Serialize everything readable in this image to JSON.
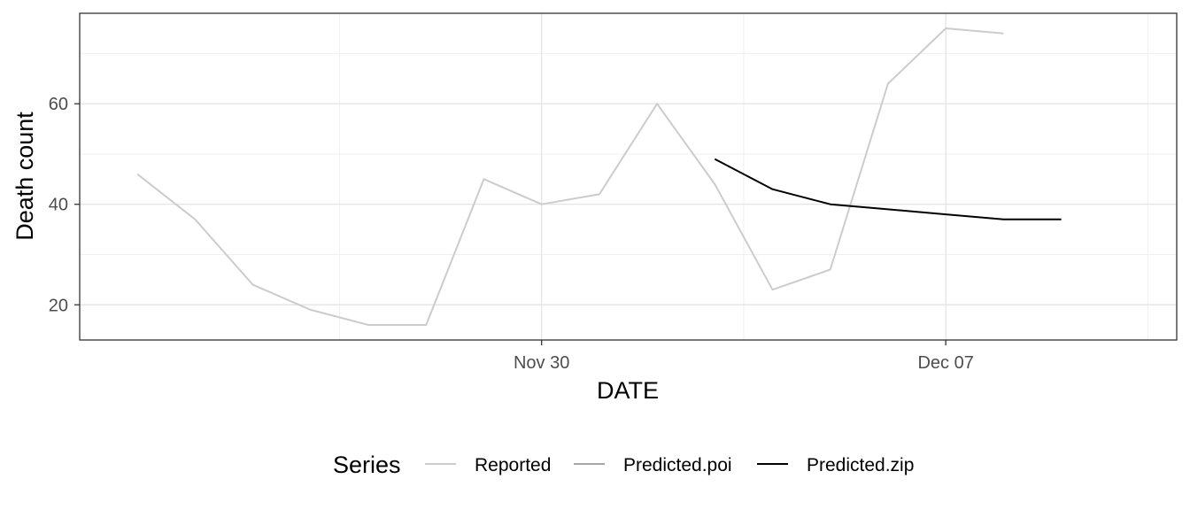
{
  "chart_data": {
    "type": "line",
    "title": "",
    "xlabel": "DATE",
    "ylabel": "Death count",
    "x_ticks": [
      {
        "date": "2020-11-30",
        "label": "Nov 30"
      },
      {
        "date": "2020-12-07",
        "label": "Dec 07"
      }
    ],
    "y_ticks": [
      20,
      40,
      60
    ],
    "xlim": [
      "2020-11-22",
      "2020-12-11"
    ],
    "ylim": [
      13,
      78
    ],
    "grid": true,
    "legend": {
      "title": "Series",
      "position": "bottom"
    },
    "series": [
      {
        "name": "Reported",
        "color": "#cccccc",
        "points": [
          {
            "x": "2020-11-23",
            "y": 46
          },
          {
            "x": "2020-11-24",
            "y": 37
          },
          {
            "x": "2020-11-25",
            "y": 24
          },
          {
            "x": "2020-11-26",
            "y": 19
          },
          {
            "x": "2020-11-27",
            "y": 16
          },
          {
            "x": "2020-11-28",
            "y": 16
          },
          {
            "x": "2020-11-29",
            "y": 45
          },
          {
            "x": "2020-11-30",
            "y": 40
          },
          {
            "x": "2020-12-01",
            "y": 42
          },
          {
            "x": "2020-12-02",
            "y": 60
          },
          {
            "x": "2020-12-03",
            "y": 44
          },
          {
            "x": "2020-12-04",
            "y": 23
          },
          {
            "x": "2020-12-05",
            "y": 27
          },
          {
            "x": "2020-12-06",
            "y": 64
          },
          {
            "x": "2020-12-07",
            "y": 75
          },
          {
            "x": "2020-12-08",
            "y": 74
          }
        ]
      },
      {
        "name": "Predicted.poi",
        "color": "#a6a6a6",
        "points": []
      },
      {
        "name": "Predicted.zip",
        "color": "#000000",
        "points": [
          {
            "x": "2020-12-03",
            "y": 49
          },
          {
            "x": "2020-12-04",
            "y": 43
          },
          {
            "x": "2020-12-05",
            "y": 40
          },
          {
            "x": "2020-12-06",
            "y": 39
          },
          {
            "x": "2020-12-07",
            "y": 38
          },
          {
            "x": "2020-12-08",
            "y": 37
          },
          {
            "x": "2020-12-09",
            "y": 37
          }
        ]
      }
    ]
  }
}
